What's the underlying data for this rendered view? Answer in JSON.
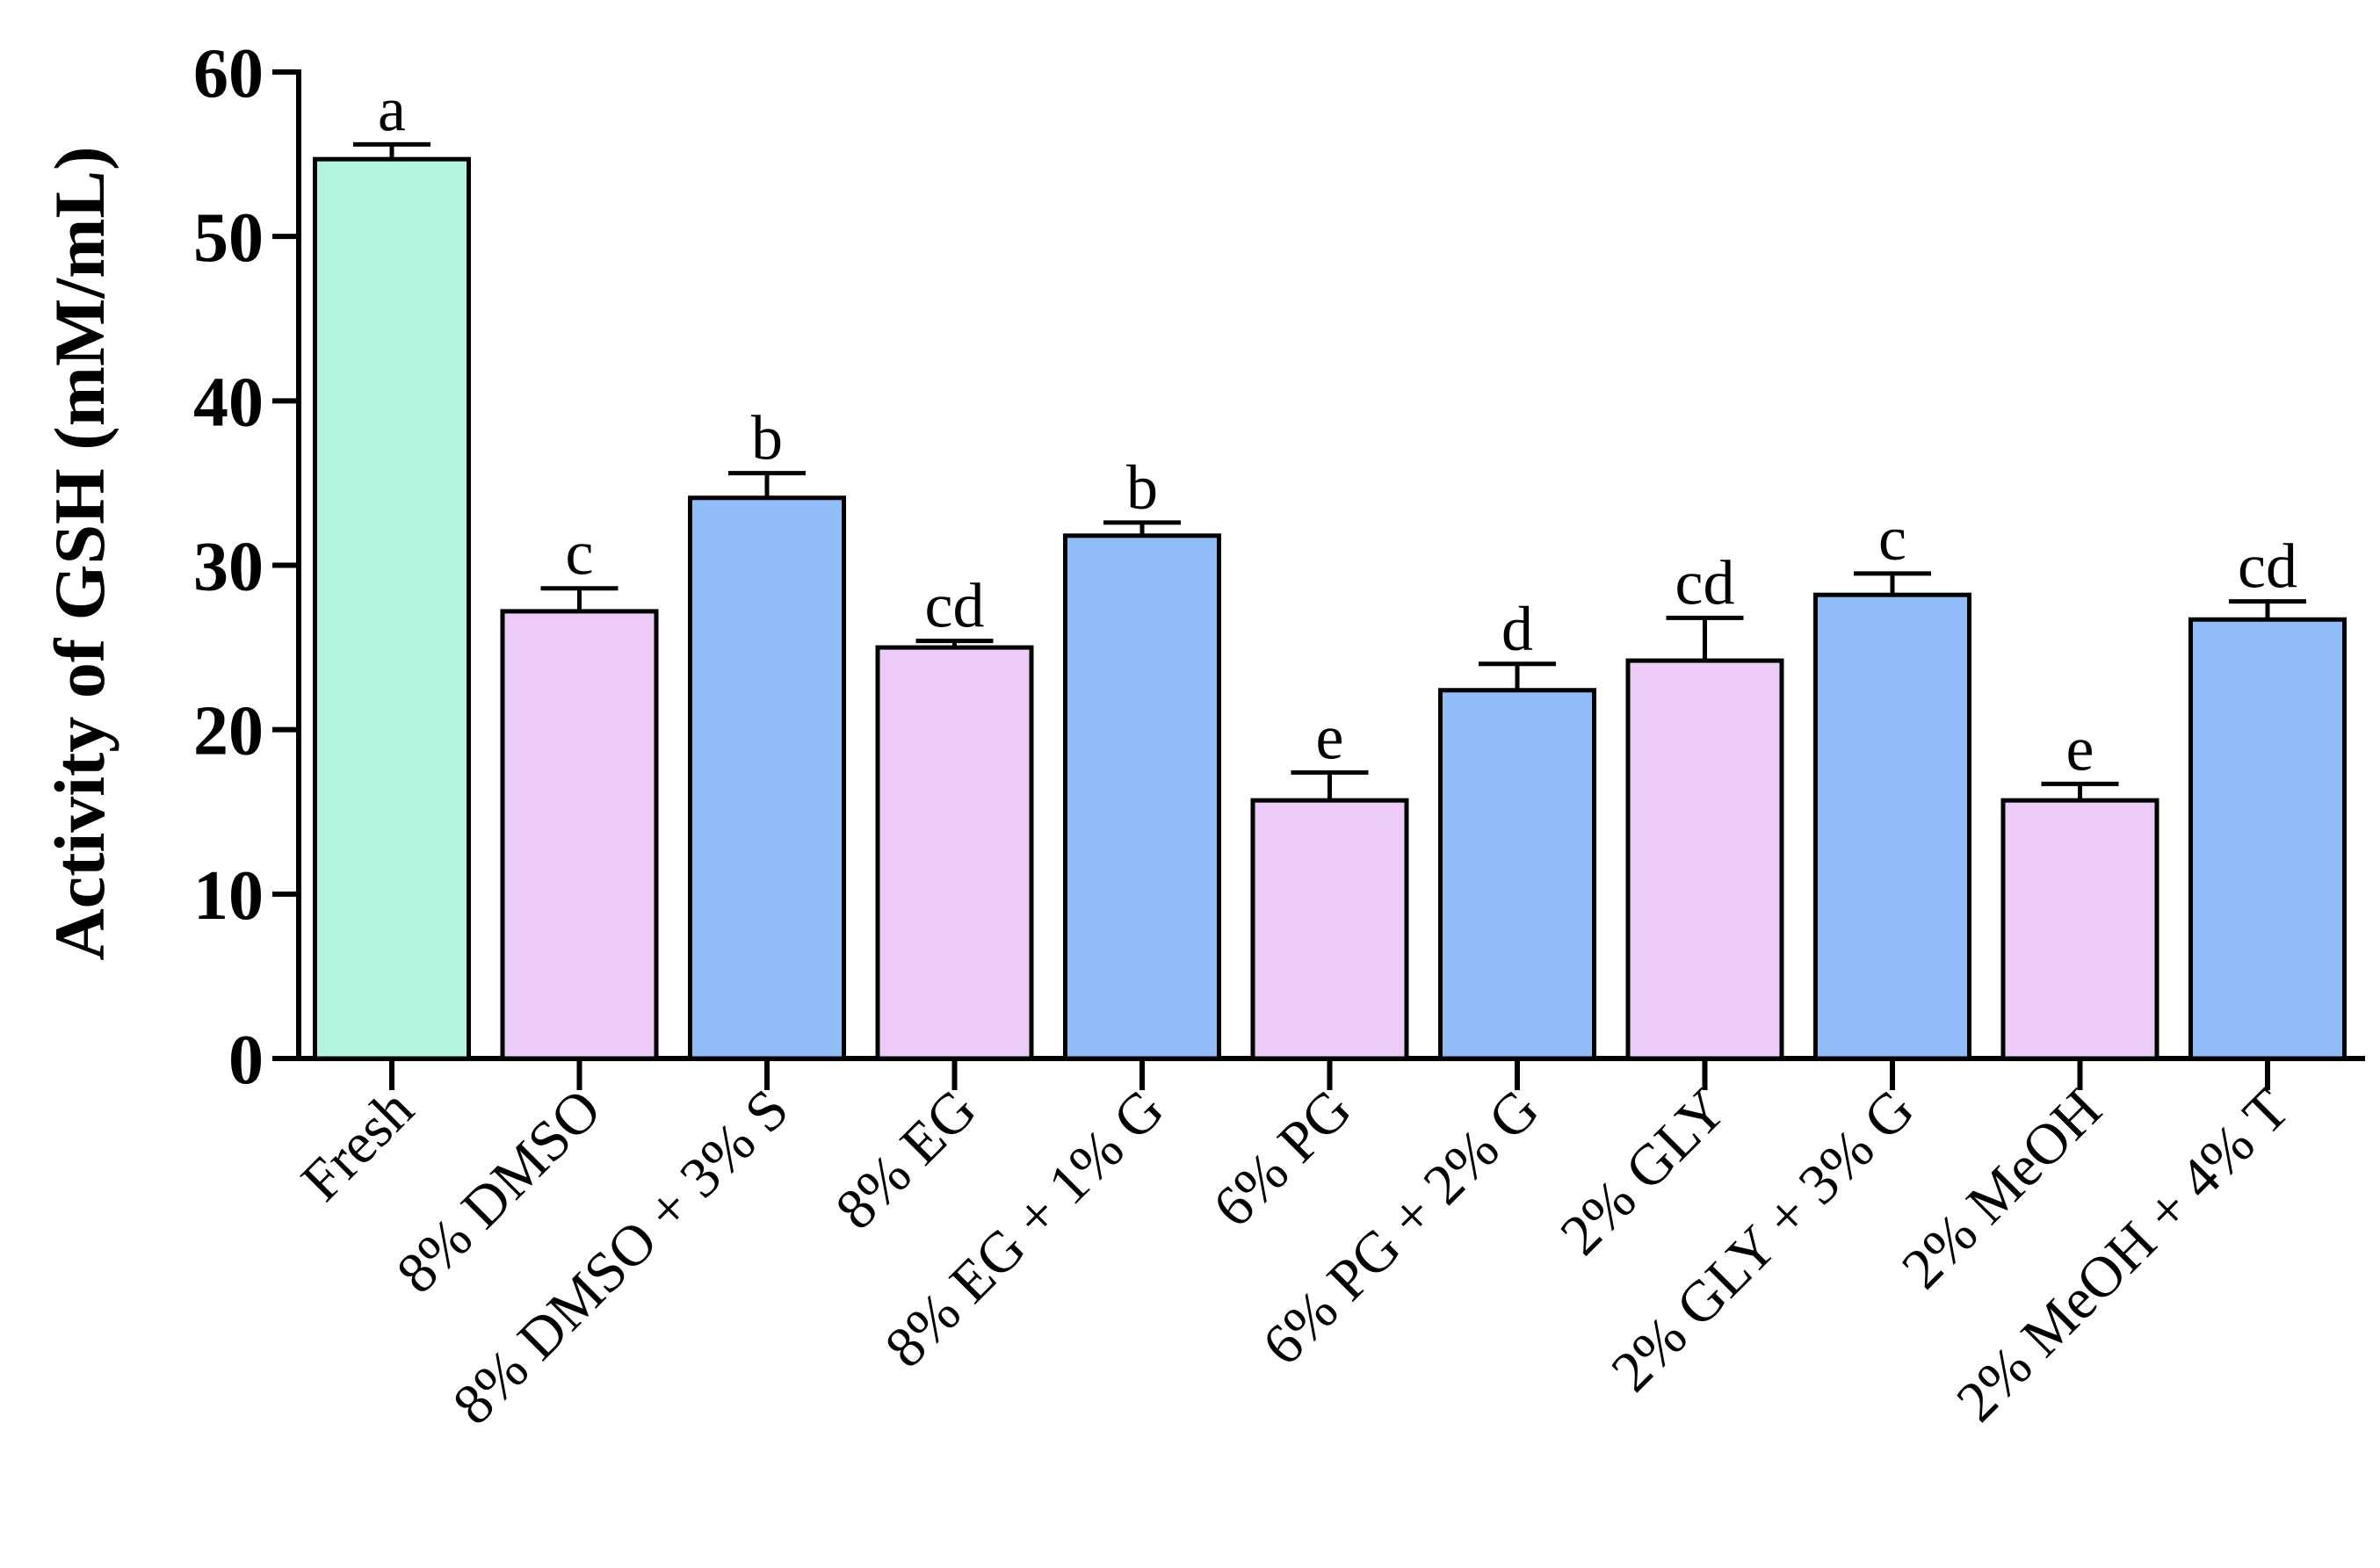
{
  "chart_data": {
    "type": "bar",
    "title": "",
    "xlabel": "",
    "ylabel": "Activity of GSH (mM/mL)",
    "ylim": [
      0,
      60
    ],
    "yticks": [
      0,
      10,
      20,
      30,
      40,
      50,
      60
    ],
    "categories": [
      "Fresh",
      "8% DMSO",
      "8% DMSO + 3% S",
      "8% EG",
      "8% EG + 1% G",
      "6% PG",
      "6% PG + 2% G",
      "2% GLY",
      "2% GLY + 3% G",
      "2% MeOH",
      "2% MeOH + 4% T"
    ],
    "values": [
      54.7,
      27.2,
      34.1,
      25.0,
      31.8,
      15.7,
      22.4,
      24.2,
      28.2,
      15.7,
      26.7
    ],
    "errors": [
      0.9,
      1.4,
      1.5,
      0.4,
      0.8,
      1.7,
      1.6,
      2.6,
      1.3,
      1.0,
      1.1
    ],
    "significance": [
      "a",
      "c",
      "b",
      "cd",
      "b",
      "e",
      "d",
      "cd",
      "c",
      "e",
      "cd"
    ],
    "colors": [
      "#b3f5de",
      "#eccbf7",
      "#90bdf8",
      "#eccbf7",
      "#90bdf8",
      "#eccbf7",
      "#90bdf8",
      "#eccbf7",
      "#90bdf8",
      "#eccbf7",
      "#90bdf8"
    ],
    "grid": false,
    "legend": "none"
  }
}
